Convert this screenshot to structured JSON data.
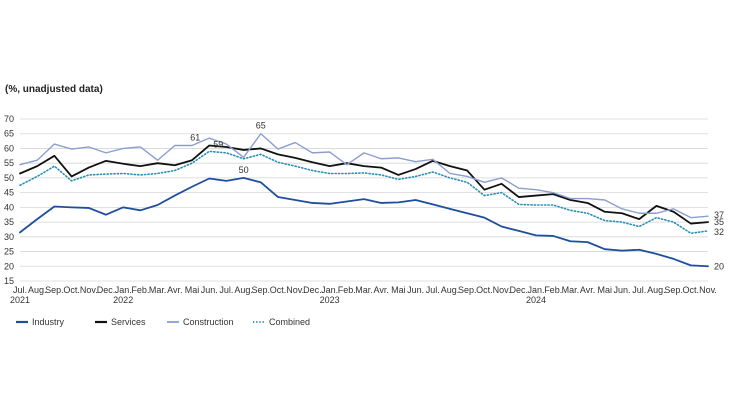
{
  "chart_data": {
    "type": "line",
    "title": "",
    "ylabel": "(%, unadjusted data)",
    "ylim": [
      15,
      70
    ],
    "yticks": [
      15,
      20,
      25,
      30,
      35,
      40,
      45,
      50,
      55,
      60,
      65,
      70
    ],
    "grid": "horizontal",
    "legend_position": "bottom-left",
    "x_month_labels": [
      "Jul.",
      "Aug.",
      "Sep.",
      "Oct.",
      "Nov.",
      "Dec.",
      "Jan.",
      "Feb.",
      "Mar.",
      "Avr.",
      "Mai",
      "Jun.",
      "Jul.",
      "Aug.",
      "Sep.",
      "Oct.",
      "Nov.",
      "Dec.",
      "Jan.",
      "Feb.",
      "Mar.",
      "Avr.",
      "Mai",
      "Jun.",
      "Jul.",
      "Aug.",
      "Sep.",
      "Oct.",
      "Nov.",
      "Dec.",
      "Jan.",
      "Feb.",
      "Mar.",
      "Avr.",
      "Mai",
      "Jun.",
      "Jul.",
      "Aug.",
      "Sep.",
      "Oct.",
      "Nov."
    ],
    "x_year_labels": [
      {
        "index": 0,
        "label": "2021"
      },
      {
        "index": 6,
        "label": "2022"
      },
      {
        "index": 18,
        "label": "2023"
      },
      {
        "index": 30,
        "label": "2024"
      }
    ],
    "series": [
      {
        "name": "Industry",
        "color": "#1f4e9c",
        "style": "solid",
        "width": 1.8,
        "values": [
          31.5,
          36,
          40.3,
          40,
          39.8,
          37.5,
          40,
          39,
          40.8,
          44,
          47,
          49.8,
          49,
          50,
          48.5,
          43.5,
          42.5,
          41.5,
          41.2,
          42,
          42.8,
          41.5,
          41.7,
          42.5,
          41,
          39.5,
          38,
          36.5,
          33.5,
          32,
          30.5,
          30.3,
          28.5,
          28.2,
          25.8,
          25.3,
          25.6,
          24.2,
          22.5,
          20.3,
          20
        ]
      },
      {
        "name": "Services",
        "color": "#111111",
        "style": "solid",
        "width": 1.8,
        "values": [
          51.5,
          54,
          57.5,
          50.5,
          53.5,
          55.8,
          54.8,
          54,
          55,
          54.3,
          56,
          61,
          60.5,
          59.5,
          60,
          58,
          56.8,
          55.3,
          54,
          55,
          54,
          53.5,
          51,
          53,
          55.8,
          54,
          52.5,
          46,
          48,
          43.5,
          44,
          44.5,
          42.5,
          41.5,
          38.5,
          38,
          36,
          40.5,
          38.5,
          34.5,
          35
        ]
      },
      {
        "name": "Construction",
        "color": "#8a9fd0",
        "style": "solid",
        "width": 1.4,
        "values": [
          54.5,
          56,
          61.5,
          59.8,
          60.5,
          58.5,
          60,
          60.5,
          56,
          61,
          61,
          63.5,
          61.5,
          57,
          65,
          59.8,
          62,
          58.5,
          58.8,
          54.5,
          58.5,
          56.5,
          56.8,
          55.5,
          56.3,
          51.5,
          50.5,
          48.5,
          50,
          46.5,
          46,
          45,
          43,
          43,
          42.5,
          39.5,
          38,
          38,
          39.5,
          36.5,
          37
        ]
      },
      {
        "name": "Combined",
        "color": "#2a8fb5",
        "style": "dotted",
        "width": 1.6,
        "values": [
          47.5,
          50.5,
          54,
          49,
          51,
          51.3,
          51.5,
          51,
          51.5,
          52.5,
          55,
          59,
          58.5,
          56.5,
          58,
          55.3,
          54,
          52.5,
          51.5,
          51.5,
          51.7,
          51,
          49.5,
          50.5,
          52,
          50,
          48.5,
          44,
          45,
          41,
          40.8,
          40.8,
          39,
          38,
          35.5,
          35,
          33.5,
          36.5,
          35,
          31.2,
          32
        ]
      }
    ],
    "annotations": [
      {
        "index": 11,
        "series": "Services",
        "text": "61"
      },
      {
        "index": 11,
        "series": "Combined",
        "text": "59"
      },
      {
        "index": 13,
        "series": "Industry",
        "text": "50"
      },
      {
        "index": 14,
        "series": "Construction",
        "text": "65"
      },
      {
        "index": 40,
        "series": "Construction",
        "text": "37"
      },
      {
        "index": 40,
        "series": "Services",
        "text": "35"
      },
      {
        "index": 40,
        "series": "Combined",
        "text": "32"
      },
      {
        "index": 40,
        "series": "Industry",
        "text": "20"
      }
    ]
  }
}
